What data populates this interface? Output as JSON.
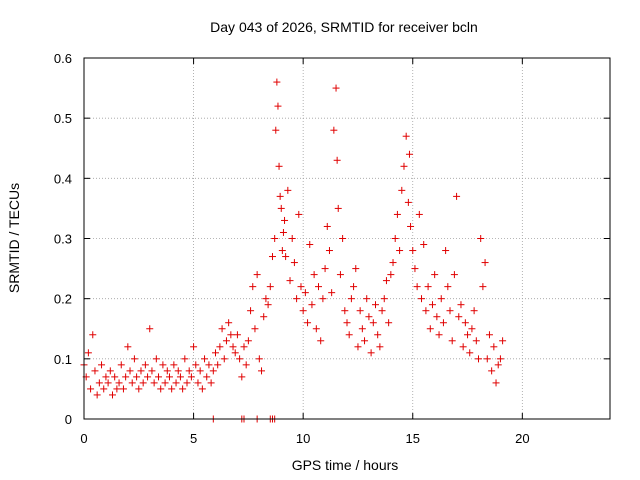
{
  "chart_data": {
    "type": "scatter",
    "title": "Day 043 of 2026, SRMTID for receiver bcln",
    "xlabel": "GPS time / hours",
    "ylabel": "SRMTID / TECUs",
    "xlim": [
      0,
      24
    ],
    "ylim": [
      0,
      0.6
    ],
    "xticks": [
      0,
      5,
      10,
      15,
      20
    ],
    "xtick_labels": [
      "0",
      "5",
      "10",
      "15",
      "20"
    ],
    "yticks": [
      0,
      0.1,
      0.2,
      0.3,
      0.4,
      0.5,
      0.6
    ],
    "ytick_labels": [
      "0",
      "0.1",
      "0.2",
      "0.3",
      "0.4",
      "0.5",
      "0.6"
    ],
    "grid": true,
    "marker": "+",
    "color": "#e00000",
    "series": [
      {
        "name": "SRMTID",
        "x": [
          0.0,
          0.1,
          0.2,
          0.3,
          0.4,
          0.5,
          0.6,
          0.7,
          0.8,
          0.9,
          1.0,
          1.1,
          1.2,
          1.3,
          1.4,
          1.5,
          1.6,
          1.7,
          1.8,
          1.9,
          2.0,
          2.1,
          2.2,
          2.3,
          2.4,
          2.5,
          2.6,
          2.7,
          2.8,
          2.9,
          3.0,
          3.1,
          3.2,
          3.3,
          3.4,
          3.5,
          3.6,
          3.7,
          3.8,
          3.9,
          4.0,
          4.1,
          4.2,
          4.3,
          4.4,
          4.5,
          4.6,
          4.7,
          4.8,
          4.9,
          5.0,
          5.1,
          5.2,
          5.3,
          5.4,
          5.5,
          5.6,
          5.7,
          5.8,
          5.9,
          6.0,
          6.1,
          6.2,
          6.3,
          6.4,
          6.5,
          6.6,
          6.7,
          6.8,
          6.9,
          7.0,
          7.1,
          7.2,
          7.3,
          7.4,
          7.5,
          7.6,
          7.7,
          7.8,
          7.9,
          8.0,
          8.1,
          8.2,
          8.3,
          8.4,
          8.5,
          8.6,
          8.7,
          8.75,
          8.8,
          8.85,
          8.9,
          8.95,
          9.0,
          9.05,
          9.1,
          9.15,
          9.2,
          9.3,
          9.4,
          9.5,
          9.6,
          9.7,
          9.8,
          9.9,
          10.0,
          10.1,
          10.2,
          10.3,
          10.4,
          10.5,
          10.6,
          10.7,
          10.8,
          10.9,
          11.0,
          11.1,
          11.2,
          11.3,
          11.4,
          11.5,
          11.55,
          11.6,
          11.7,
          11.8,
          11.9,
          12.0,
          12.1,
          12.2,
          12.3,
          12.4,
          12.5,
          12.6,
          12.7,
          12.8,
          12.9,
          13.0,
          13.1,
          13.2,
          13.3,
          13.4,
          13.5,
          13.6,
          13.7,
          13.8,
          13.9,
          14.0,
          14.1,
          14.2,
          14.3,
          14.4,
          14.5,
          14.6,
          14.7,
          14.8,
          14.85,
          14.9,
          15.0,
          15.1,
          15.2,
          15.3,
          15.4,
          15.5,
          15.6,
          15.7,
          15.8,
          15.9,
          16.0,
          16.1,
          16.2,
          16.3,
          16.4,
          16.5,
          16.6,
          16.7,
          16.8,
          16.9,
          17.0,
          17.1,
          17.2,
          17.3,
          17.4,
          17.5,
          17.6,
          17.7,
          17.8,
          17.9,
          18.0,
          18.1,
          18.2,
          18.3,
          18.4,
          18.5,
          18.6,
          18.7,
          18.8,
          18.9,
          19.0,
          19.1,
          5.9,
          7.2,
          7.3,
          7.9,
          8.5,
          8.6,
          8.7
        ],
        "y": [
          0.09,
          0.07,
          0.11,
          0.05,
          0.14,
          0.08,
          0.04,
          0.06,
          0.09,
          0.05,
          0.07,
          0.06,
          0.08,
          0.04,
          0.07,
          0.05,
          0.06,
          0.09,
          0.05,
          0.07,
          0.12,
          0.08,
          0.06,
          0.1,
          0.07,
          0.05,
          0.08,
          0.06,
          0.09,
          0.07,
          0.15,
          0.08,
          0.06,
          0.1,
          0.07,
          0.05,
          0.09,
          0.06,
          0.08,
          0.07,
          0.05,
          0.09,
          0.06,
          0.08,
          0.07,
          0.05,
          0.1,
          0.06,
          0.08,
          0.07,
          0.12,
          0.09,
          0.06,
          0.08,
          0.05,
          0.1,
          0.07,
          0.09,
          0.06,
          0.08,
          0.11,
          0.09,
          0.12,
          0.15,
          0.1,
          0.13,
          0.16,
          0.14,
          0.12,
          0.11,
          0.14,
          0.1,
          0.07,
          0.12,
          0.09,
          0.13,
          0.18,
          0.22,
          0.15,
          0.24,
          0.1,
          0.08,
          0.17,
          0.2,
          0.19,
          0.22,
          0.27,
          0.3,
          0.48,
          0.56,
          0.52,
          0.42,
          0.37,
          0.35,
          0.28,
          0.31,
          0.33,
          0.27,
          0.38,
          0.23,
          0.3,
          0.26,
          0.2,
          0.34,
          0.22,
          0.18,
          0.21,
          0.16,
          0.29,
          0.19,
          0.24,
          0.15,
          0.22,
          0.13,
          0.2,
          0.25,
          0.32,
          0.28,
          0.21,
          0.48,
          0.55,
          0.43,
          0.35,
          0.24,
          0.3,
          0.18,
          0.16,
          0.14,
          0.2,
          0.22,
          0.25,
          0.12,
          0.18,
          0.15,
          0.13,
          0.2,
          0.17,
          0.11,
          0.16,
          0.19,
          0.14,
          0.12,
          0.18,
          0.2,
          0.23,
          0.16,
          0.24,
          0.26,
          0.3,
          0.34,
          0.28,
          0.38,
          0.42,
          0.47,
          0.36,
          0.44,
          0.32,
          0.28,
          0.25,
          0.22,
          0.34,
          0.2,
          0.29,
          0.18,
          0.22,
          0.15,
          0.19,
          0.24,
          0.17,
          0.14,
          0.2,
          0.16,
          0.28,
          0.22,
          0.18,
          0.13,
          0.24,
          0.37,
          0.17,
          0.19,
          0.12,
          0.16,
          0.14,
          0.11,
          0.15,
          0.18,
          0.13,
          0.1,
          0.3,
          0.22,
          0.26,
          0.1,
          0.14,
          0.08,
          0.12,
          0.06,
          0.09,
          0.1,
          0.13,
          0,
          0,
          0,
          0,
          0,
          0,
          0
        ]
      }
    ]
  }
}
